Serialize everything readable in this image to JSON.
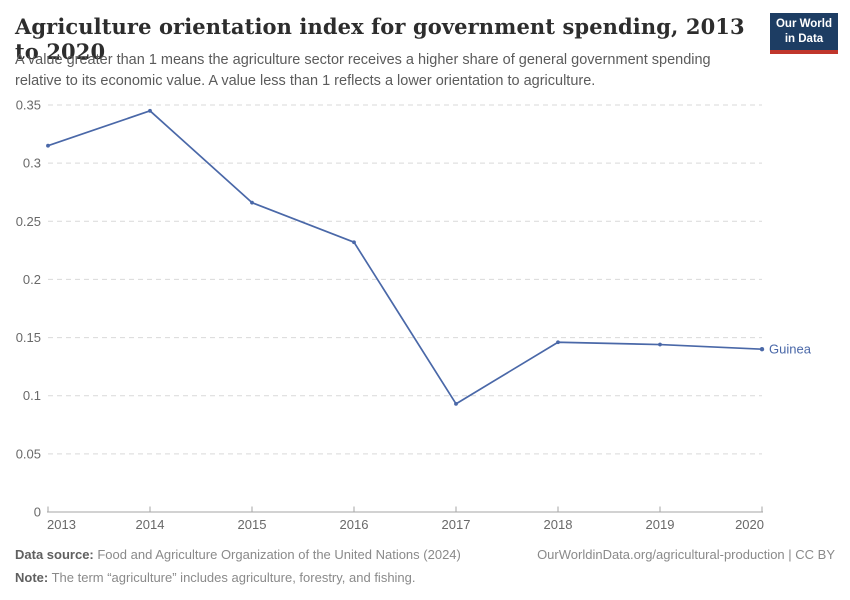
{
  "header": {
    "title": "Agriculture orientation index for government spending, 2013 to 2020",
    "subtitle": "A value greater than 1 means the agriculture sector receives a higher share of general government spending relative to its economic value. A value less than 1 reflects a lower orientation to agriculture.",
    "logo": {
      "line1": "Our World",
      "line2": "in Data",
      "bg_color": "#1d3d63",
      "bar_color": "#c0362c"
    }
  },
  "chart_data": {
    "type": "line",
    "title": "Agriculture orientation index for government spending, 2013 to 2020",
    "x": [
      2013,
      2014,
      2015,
      2016,
      2017,
      2018,
      2019,
      2020
    ],
    "series": [
      {
        "name": "Guinea",
        "color": "#4a68a8",
        "values": [
          0.315,
          0.345,
          0.266,
          0.232,
          0.093,
          0.146,
          0.144,
          0.14
        ]
      }
    ],
    "xlabel": "",
    "ylabel": "",
    "ylim": [
      0,
      0.35
    ],
    "y_ticks": [
      0,
      0.05,
      0.1,
      0.15,
      0.2,
      0.25,
      0.3,
      0.35
    ],
    "grid": "horizontal-dashed",
    "legend": "end-of-line-label",
    "grid_color": "#d9d9d9",
    "axis_color": "#a6a6a6",
    "tick_label_color": "#696969"
  },
  "footer": {
    "source_label": "Data source:",
    "source_text": " Food and Agriculture Organization of the United Nations (2024)",
    "link_text": "OurWorldinData.org/agricultural-production | CC BY",
    "note_label": "Note:",
    "note_text": " The term “agriculture” includes agriculture, forestry, and fishing."
  }
}
